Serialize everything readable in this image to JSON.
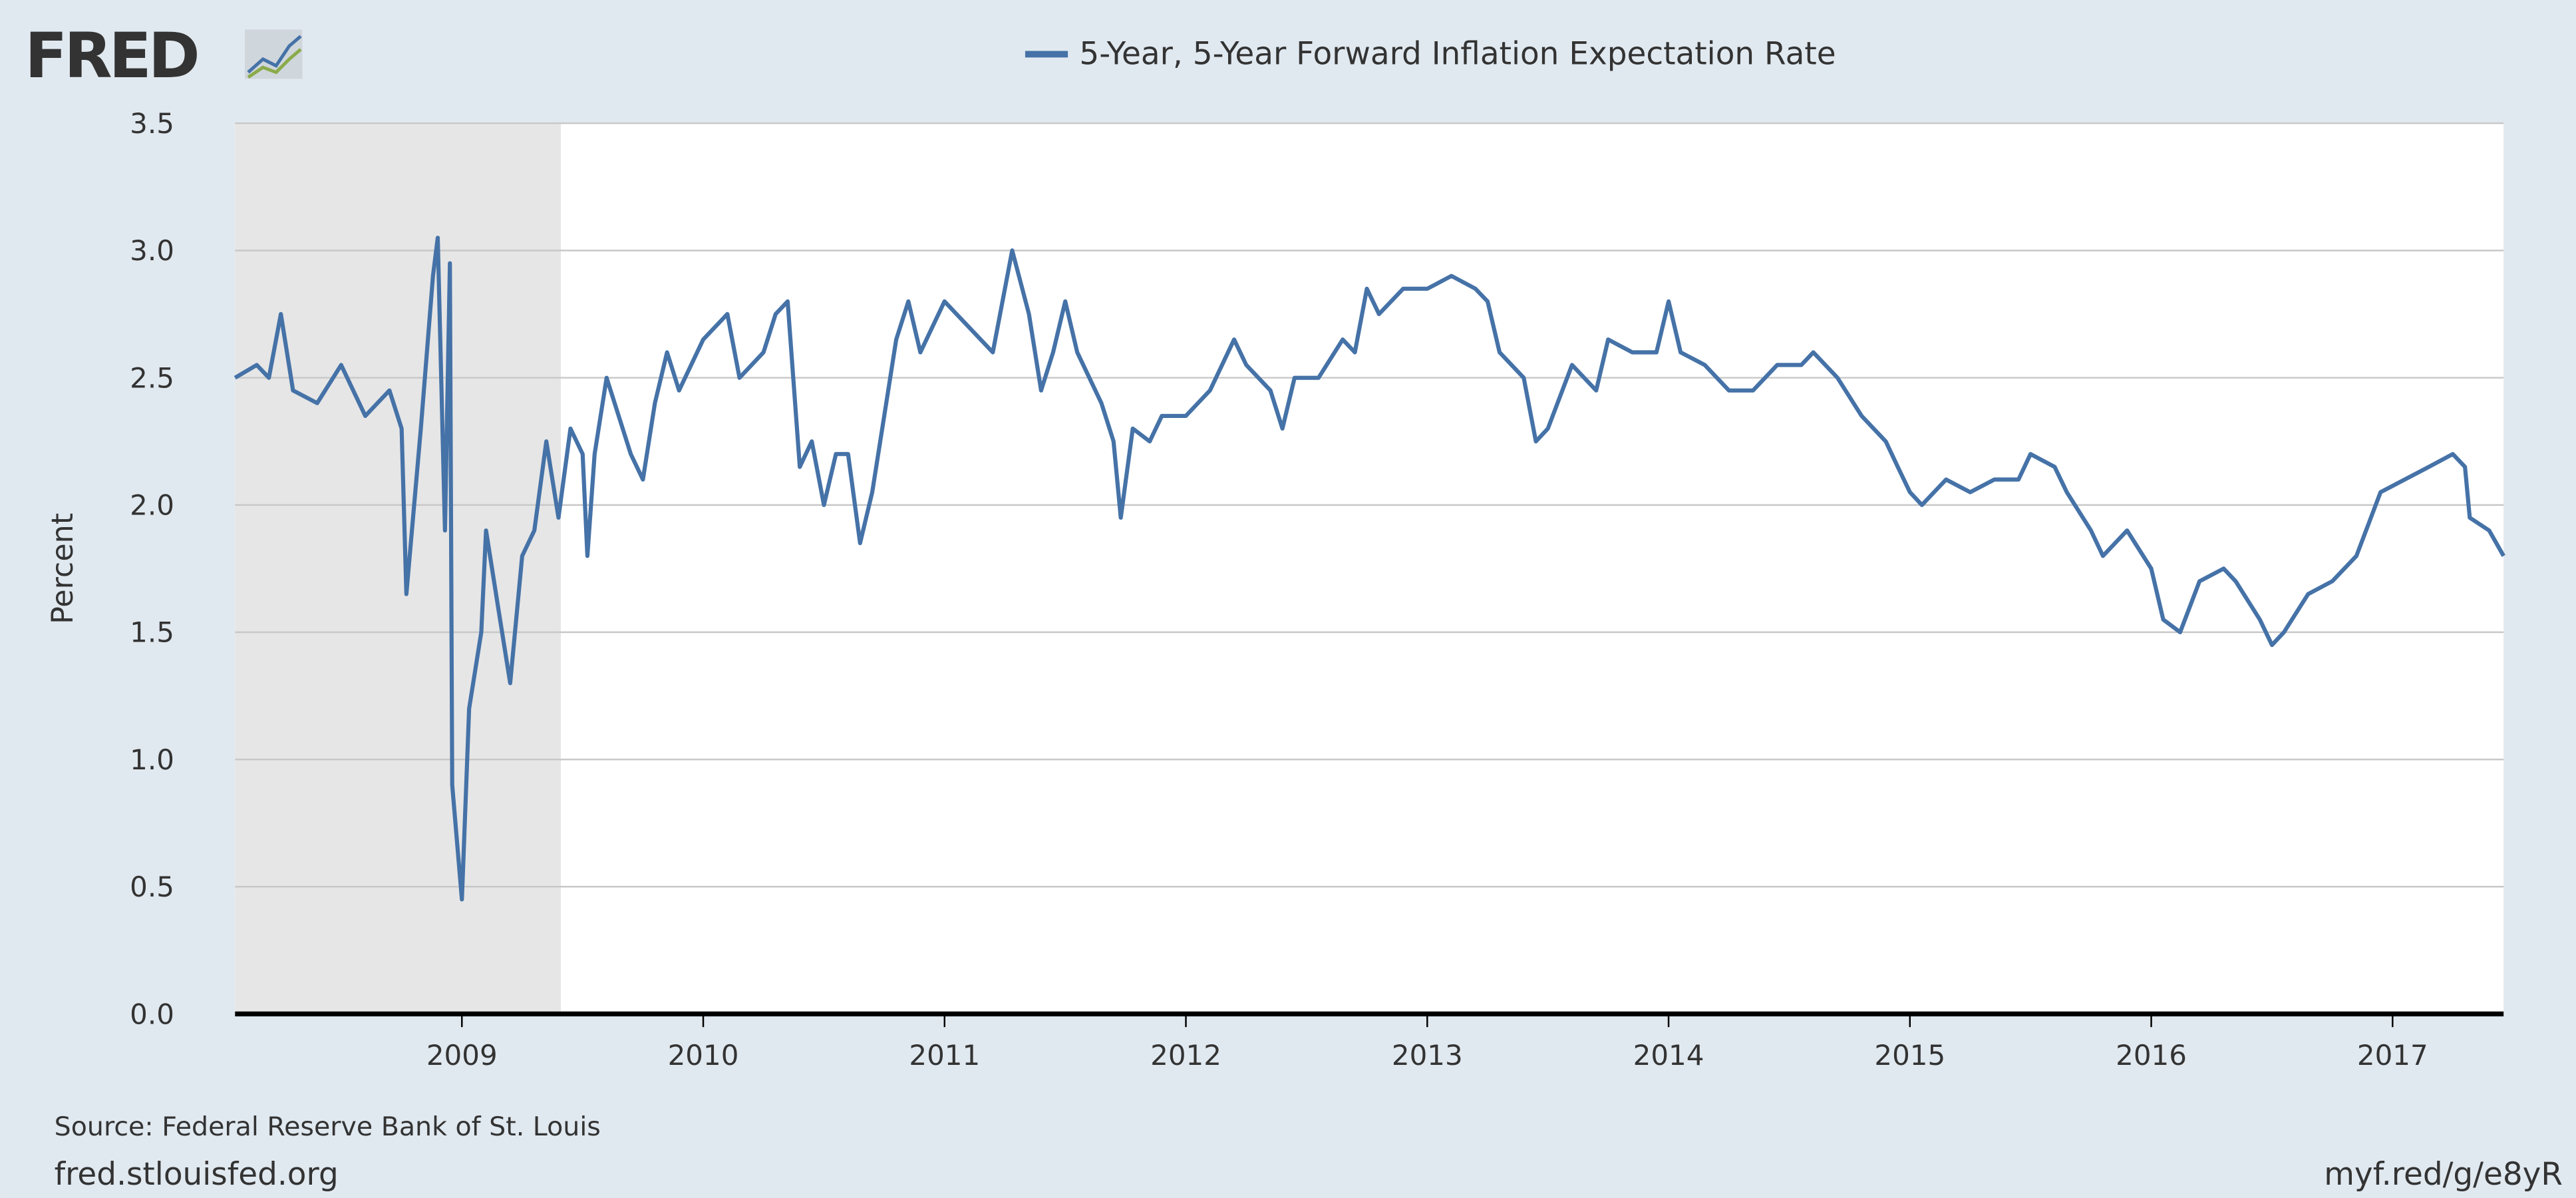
{
  "logo": "FRED",
  "chart_data": {
    "type": "line",
    "series": [
      {
        "name": "5-Year, 5-Year Forward Inflation Expectation Rate",
        "color": "#4572a7",
        "x": [
          2008.06,
          2008.15,
          2008.2,
          2008.25,
          2008.3,
          2008.4,
          2008.5,
          2008.6,
          2008.7,
          2008.75,
          2008.77,
          2008.83,
          2008.88,
          2008.9,
          2008.93,
          2008.95,
          2008.96,
          2009.0,
          2009.03,
          2009.08,
          2009.1,
          2009.15,
          2009.2,
          2009.25,
          2009.3,
          2009.35,
          2009.4,
          2009.45,
          2009.5,
          2009.52,
          2009.55,
          2009.6,
          2009.7,
          2009.75,
          2009.8,
          2009.85,
          2009.9,
          2010.0,
          2010.1,
          2010.15,
          2010.25,
          2010.3,
          2010.35,
          2010.4,
          2010.45,
          2010.5,
          2010.55,
          2010.6,
          2010.65,
          2010.7,
          2010.75,
          2010.8,
          2010.85,
          2010.9,
          2011.0,
          2011.1,
          2011.2,
          2011.28,
          2011.35,
          2011.4,
          2011.45,
          2011.5,
          2011.55,
          2011.65,
          2011.7,
          2011.73,
          2011.78,
          2011.85,
          2011.9,
          2012.0,
          2012.1,
          2012.2,
          2012.25,
          2012.35,
          2012.4,
          2012.45,
          2012.55,
          2012.65,
          2012.7,
          2012.75,
          2012.8,
          2012.9,
          2013.0,
          2013.1,
          2013.2,
          2013.25,
          2013.3,
          2013.4,
          2013.45,
          2013.5,
          2013.6,
          2013.7,
          2013.75,
          2013.85,
          2013.95,
          2014.0,
          2014.05,
          2014.15,
          2014.25,
          2014.35,
          2014.45,
          2014.55,
          2014.6,
          2014.7,
          2014.8,
          2014.9,
          2014.95,
          2015.0,
          2015.05,
          2015.15,
          2015.25,
          2015.35,
          2015.45,
          2015.5,
          2015.6,
          2015.65,
          2015.75,
          2015.8,
          2015.9,
          2016.0,
          2016.05,
          2016.12,
          2016.2,
          2016.3,
          2016.35,
          2016.45,
          2016.5,
          2016.55,
          2016.65,
          2016.75,
          2016.85,
          2016.95,
          2017.05,
          2017.15,
          2017.25,
          2017.3,
          2017.32,
          2017.4,
          2017.46
        ],
        "values": [
          2.5,
          2.55,
          2.5,
          2.75,
          2.45,
          2.4,
          2.55,
          2.35,
          2.45,
          2.3,
          1.65,
          2.3,
          2.9,
          3.05,
          1.9,
          2.95,
          0.9,
          0.45,
          1.2,
          1.5,
          1.9,
          1.6,
          1.3,
          1.8,
          1.9,
          2.25,
          1.95,
          2.3,
          2.2,
          1.8,
          2.2,
          2.5,
          2.2,
          2.1,
          2.4,
          2.6,
          2.45,
          2.65,
          2.75,
          2.5,
          2.6,
          2.75,
          2.8,
          2.15,
          2.25,
          2.0,
          2.2,
          2.2,
          1.85,
          2.05,
          2.35,
          2.65,
          2.8,
          2.6,
          2.8,
          2.7,
          2.6,
          3.0,
          2.75,
          2.45,
          2.6,
          2.8,
          2.6,
          2.4,
          2.25,
          1.95,
          2.3,
          2.25,
          2.35,
          2.35,
          2.45,
          2.65,
          2.55,
          2.45,
          2.3,
          2.5,
          2.5,
          2.65,
          2.6,
          2.85,
          2.75,
          2.85,
          2.85,
          2.9,
          2.85,
          2.8,
          2.6,
          2.5,
          2.25,
          2.3,
          2.55,
          2.45,
          2.65,
          2.6,
          2.6,
          2.8,
          2.6,
          2.55,
          2.45,
          2.45,
          2.55,
          2.55,
          2.6,
          2.5,
          2.35,
          2.25,
          2.15,
          2.05,
          2.0,
          2.1,
          2.05,
          2.1,
          2.1,
          2.2,
          2.15,
          2.05,
          1.9,
          1.8,
          1.9,
          1.75,
          1.55,
          1.5,
          1.7,
          1.75,
          1.7,
          1.55,
          1.45,
          1.5,
          1.65,
          1.7,
          1.8,
          2.05,
          2.1,
          2.15,
          2.2,
          2.15,
          1.95,
          1.9,
          1.8
        ]
      }
    ],
    "xlim": [
      2008.06,
      2017.46
    ],
    "xticks": [
      2009,
      2010,
      2011,
      2012,
      2013,
      2014,
      2015,
      2016,
      2017
    ],
    "ylim": [
      0,
      3.5
    ],
    "yticks": [
      {
        "value": 0,
        "label": "0.0"
      },
      0.5,
      {
        "value": 1,
        "label": "1.0"
      },
      1.5,
      {
        "value": 2,
        "label": "2.0"
      },
      2.5,
      {
        "value": 3,
        "label": "3.0"
      },
      3.5
    ],
    "shade": [
      2008.06,
      2009.41
    ],
    "shade_color": "#e6e6e6",
    "ylabel": "Percent",
    "grid": true,
    "source": "Source: Federal Reserve Bank of St. Louis",
    "site": "fred.stlouisfed.org",
    "link": "myf.red/g/e8yR"
  }
}
